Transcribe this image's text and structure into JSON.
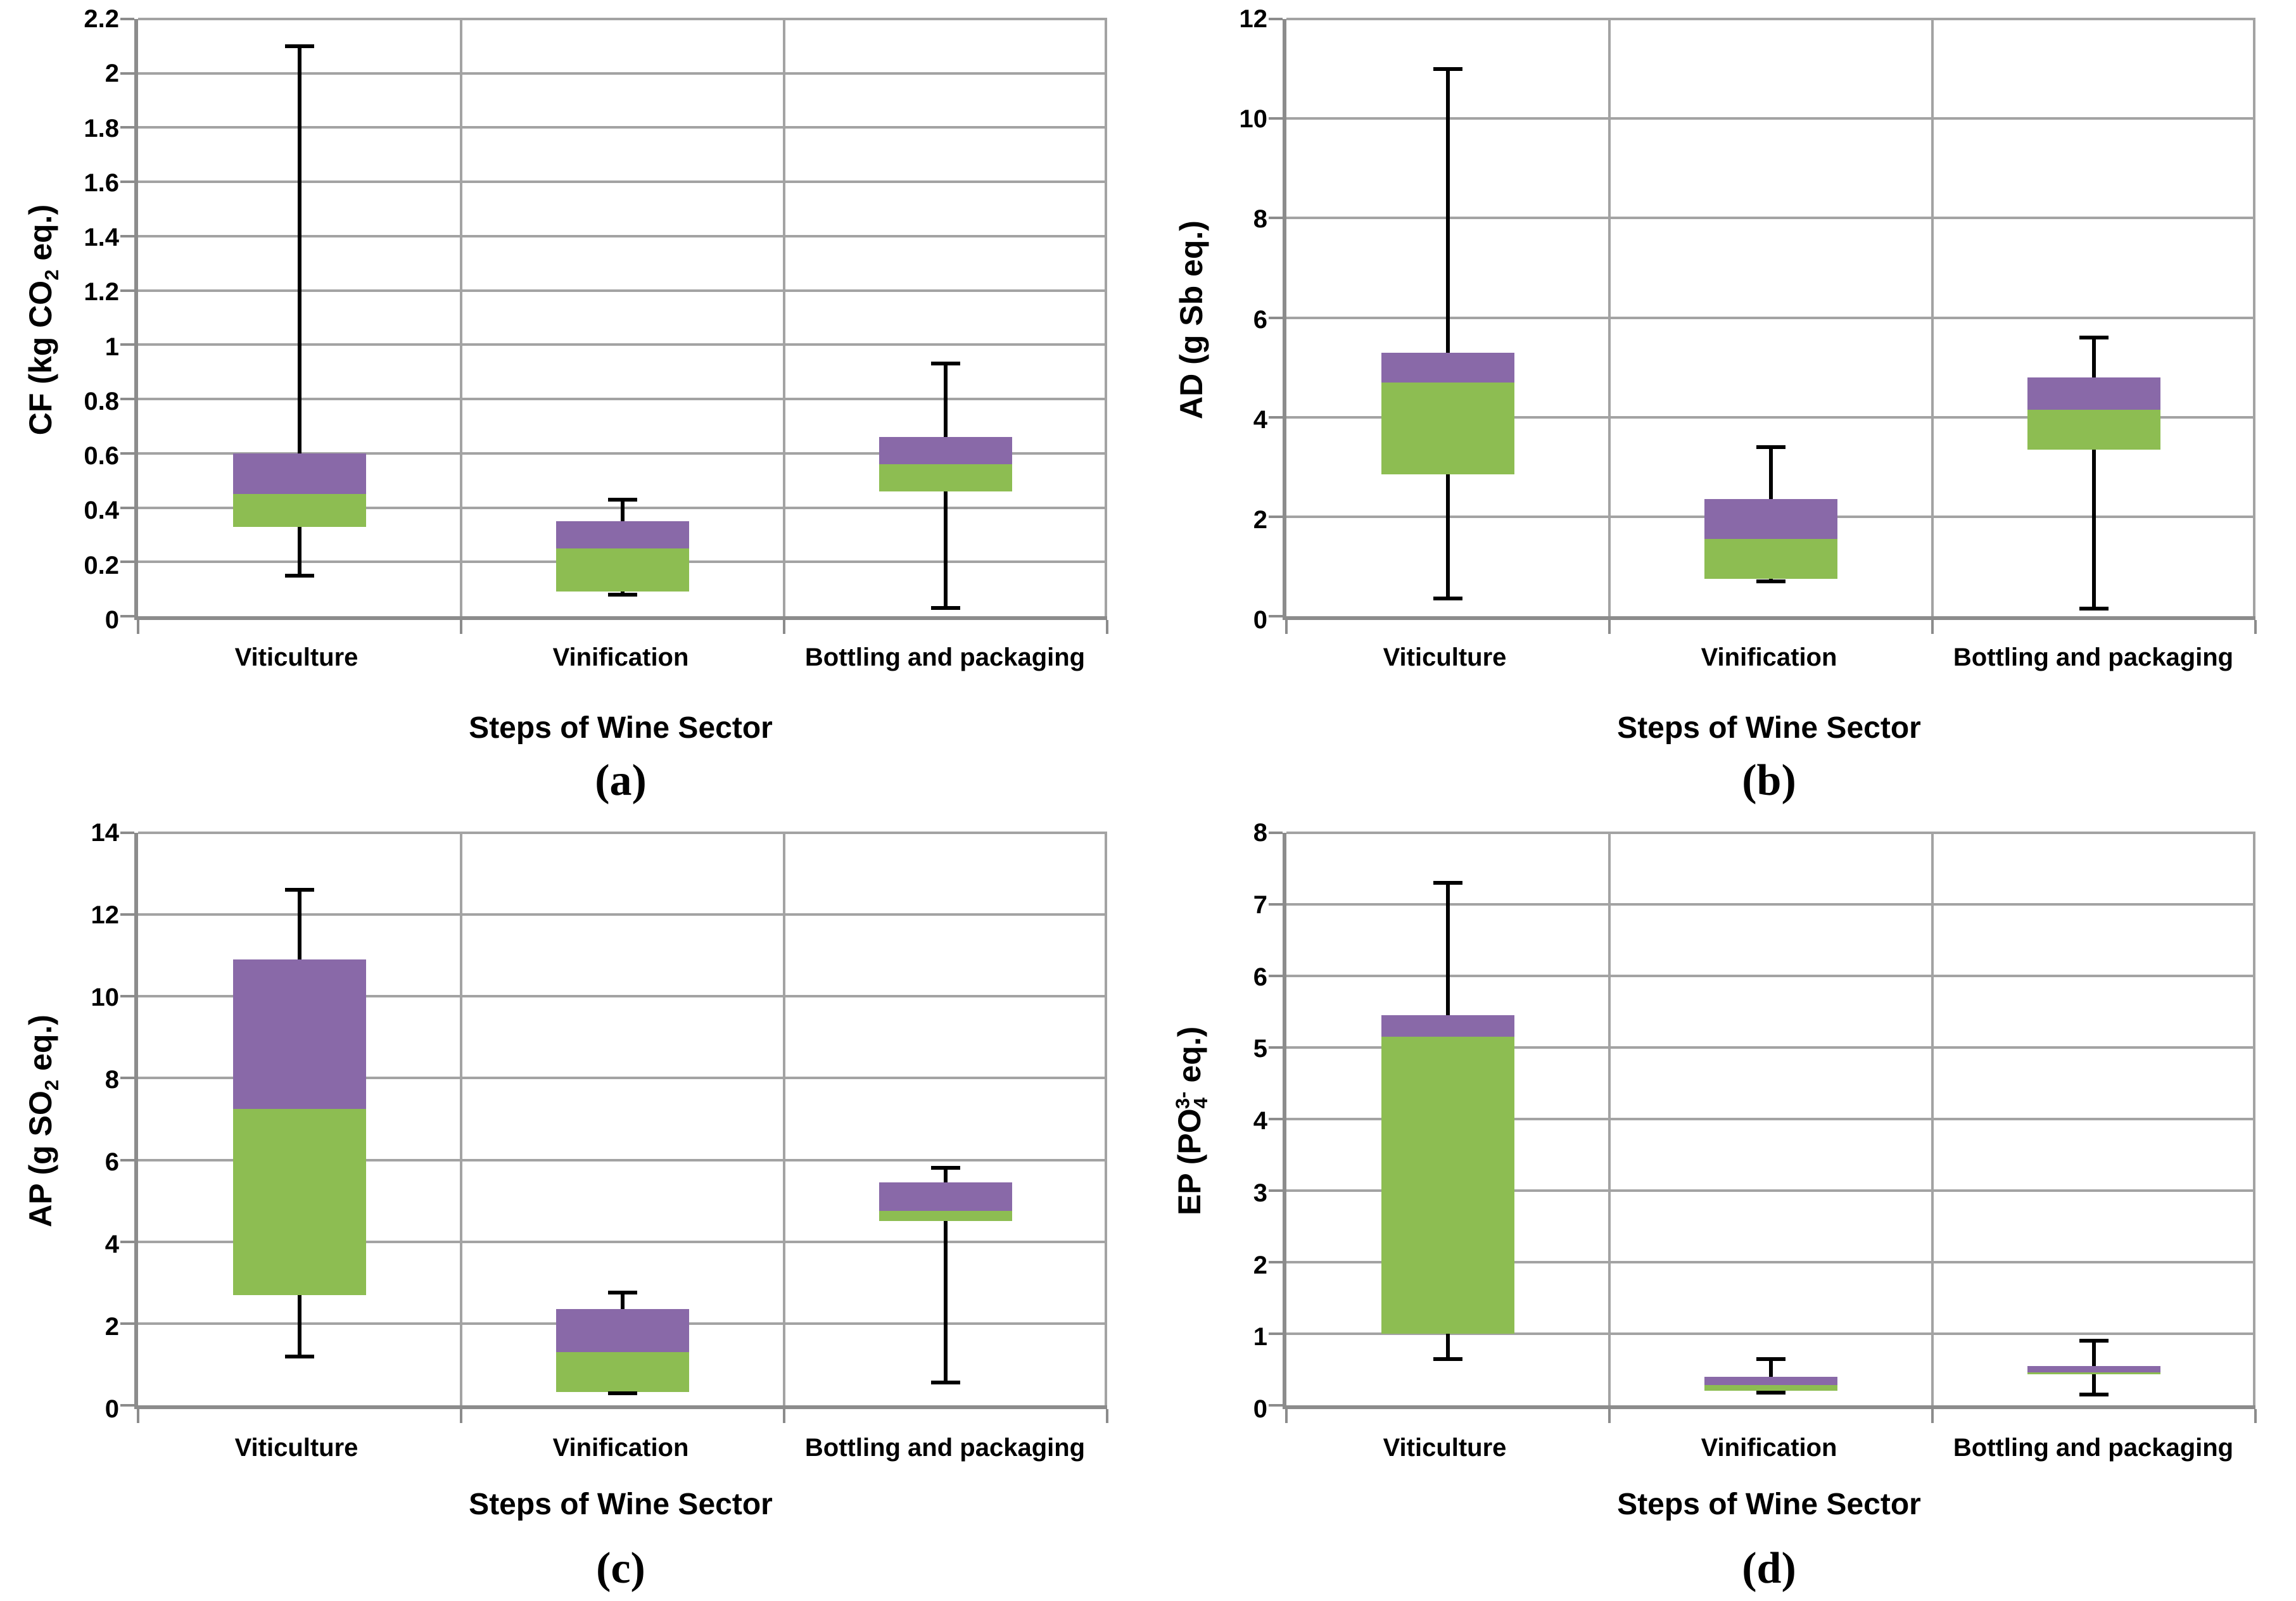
{
  "figure": {
    "x_axis_title": "Steps of Wine Sector",
    "categories": [
      "Viticulture",
      "Vinification",
      "Bottling and packaging"
    ],
    "colors": {
      "box_lower": "#8DBD52",
      "box_upper": "#8969A8",
      "whisker": "#000000",
      "gridline": "#A3A3A3",
      "axis": "#8C8C8C",
      "background": "#FFFFFF",
      "text": "#000000"
    }
  },
  "chart_data": [
    {
      "type": "box",
      "panel_letter": "(a)",
      "ylabel": "CF (kg CO2 eq.)",
      "ylabel_parts": [
        {
          "text": "CF (kg CO",
          "style": "normal"
        },
        {
          "text": "2",
          "style": "sub"
        },
        {
          "text": " eq.)",
          "style": "normal"
        }
      ],
      "xlabel": "Steps of Wine Sector",
      "ylim": [
        0,
        2.2
      ],
      "ytick_step": 0.2,
      "ytick_labels": [
        "0",
        "0.2",
        "0.4",
        "0.6",
        "0.8",
        "1",
        "1.2",
        "1.4",
        "1.6",
        "1.8",
        "2",
        "2.2"
      ],
      "grid": true,
      "categories": [
        "Viticulture",
        "Vinification",
        "Bottling and packaging"
      ],
      "series": [
        {
          "name": "Viticulture",
          "min": 0.15,
          "q1": 0.33,
          "median": 0.45,
          "q3": 0.6,
          "max": 2.1
        },
        {
          "name": "Vinification",
          "min": 0.08,
          "q1": 0.09,
          "median": 0.25,
          "q3": 0.35,
          "max": 0.43
        },
        {
          "name": "Bottling and packaging",
          "min": 0.03,
          "q1": 0.46,
          "median": 0.56,
          "q3": 0.66,
          "max": 0.93
        }
      ]
    },
    {
      "type": "box",
      "panel_letter": "(b)",
      "ylabel": "AD (g Sb eq.)",
      "ylabel_parts": [
        {
          "text": "AD (g Sb eq.)",
          "style": "normal"
        }
      ],
      "xlabel": "Steps of Wine Sector",
      "ylim": [
        0,
        12
      ],
      "ytick_step": 2,
      "ytick_labels": [
        "0",
        "2",
        "4",
        "6",
        "8",
        "10",
        "12"
      ],
      "grid": true,
      "categories": [
        "Viticulture",
        "Vinification",
        "Bottling and packaging"
      ],
      "series": [
        {
          "name": "Viticulture",
          "min": 0.35,
          "q1": 2.85,
          "median": 4.7,
          "q3": 5.3,
          "max": 11.0
        },
        {
          "name": "Vinification",
          "min": 0.7,
          "q1": 0.75,
          "median": 1.55,
          "q3": 2.35,
          "max": 3.4
        },
        {
          "name": "Bottling and packaging",
          "min": 0.15,
          "q1": 3.35,
          "median": 4.15,
          "q3": 4.8,
          "max": 5.6
        }
      ]
    },
    {
      "type": "box",
      "panel_letter": "(c)",
      "ylabel": "AP (g SO2 eq.)",
      "ylabel_parts": [
        {
          "text": "AP (g SO",
          "style": "normal"
        },
        {
          "text": "2",
          "style": "sub"
        },
        {
          "text": " eq.)",
          "style": "normal"
        }
      ],
      "xlabel": "Steps of Wine Sector",
      "ylim": [
        0,
        14
      ],
      "ytick_step": 2,
      "ytick_labels": [
        "0",
        "2",
        "4",
        "6",
        "8",
        "10",
        "12",
        "14"
      ],
      "grid": true,
      "categories": [
        "Viticulture",
        "Vinification",
        "Bottling and packaging"
      ],
      "series": [
        {
          "name": "Viticulture",
          "min": 1.2,
          "q1": 2.7,
          "median": 7.25,
          "q3": 10.9,
          "max": 12.6
        },
        {
          "name": "Vinification",
          "min": 0.3,
          "q1": 0.33,
          "median": 1.3,
          "q3": 2.35,
          "max": 2.75
        },
        {
          "name": "Bottling and packaging",
          "min": 0.55,
          "q1": 4.5,
          "median": 4.75,
          "q3": 5.45,
          "max": 5.8
        }
      ]
    },
    {
      "type": "box",
      "panel_letter": "(d)",
      "ylabel": "EP (PO4 3- eq.)",
      "ylabel_parts": [
        {
          "text": "EP (PO",
          "style": "normal"
        },
        {
          "text": "4",
          "style": "sub"
        },
        {
          "text": "3-",
          "style": "sup-stacked"
        },
        {
          "text": " eq.)",
          "style": "normal"
        }
      ],
      "xlabel": "Steps of Wine Sector",
      "ylim": [
        0,
        8
      ],
      "ytick_step": 1,
      "ytick_labels": [
        "0",
        "1",
        "2",
        "3",
        "4",
        "5",
        "6",
        "7",
        "8"
      ],
      "grid": true,
      "categories": [
        "Viticulture",
        "Vinification",
        "Bottling and packaging"
      ],
      "series": [
        {
          "name": "Viticulture",
          "min": 0.65,
          "q1": 1.0,
          "median": 5.15,
          "q3": 5.45,
          "max": 7.3
        },
        {
          "name": "Vinification",
          "min": 0.18,
          "q1": 0.2,
          "median": 0.28,
          "q3": 0.4,
          "max": 0.65
        },
        {
          "name": "Bottling and packaging",
          "min": 0.15,
          "q1": 0.43,
          "median": 0.46,
          "q3": 0.55,
          "max": 0.9
        }
      ]
    }
  ]
}
